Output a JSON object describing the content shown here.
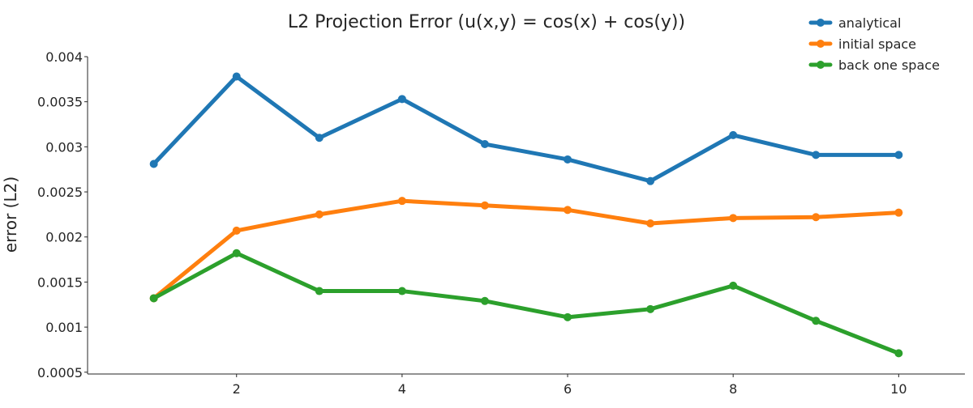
{
  "chart_data": {
    "type": "line",
    "title": "L2 Projection Error (u(x,y) = cos(x) + cos(y))",
    "xlabel": "",
    "ylabel": "error (L2)",
    "x": [
      1,
      2,
      3,
      4,
      5,
      6,
      7,
      8,
      9,
      10
    ],
    "xlim": [
      0.2,
      10.8
    ],
    "ylim": [
      0.00048,
      0.004
    ],
    "xticks": [
      2,
      4,
      6,
      8,
      10
    ],
    "xtick_labels": [
      "2",
      "4",
      "6",
      "8",
      "10"
    ],
    "yticks": [
      0.0005,
      0.001,
      0.0015,
      0.002,
      0.0025,
      0.003,
      0.0035,
      0.004
    ],
    "ytick_labels": [
      "0.0005",
      "0.001",
      "0.0015",
      "0.002",
      "0.0025",
      "0.003",
      "0.0035",
      "0.004"
    ],
    "grid": false,
    "legend_position": "top-right",
    "series": [
      {
        "name": "analytical",
        "color": "#1f77b4",
        "values": [
          0.00281,
          0.00378,
          0.0031,
          0.00353,
          0.00303,
          0.00286,
          0.00262,
          0.00313,
          0.00291,
          0.00291
        ]
      },
      {
        "name": "initial space",
        "color": "#ff7f0e",
        "values": [
          0.00132,
          0.00207,
          0.00225,
          0.0024,
          0.00235,
          0.0023,
          0.00215,
          0.00221,
          0.00222,
          0.00227
        ]
      },
      {
        "name": "back one space",
        "color": "#2ca02c",
        "values": [
          0.00132,
          0.00182,
          0.0014,
          0.0014,
          0.00129,
          0.00111,
          0.0012,
          0.00146,
          0.00107,
          0.00071
        ]
      }
    ]
  }
}
